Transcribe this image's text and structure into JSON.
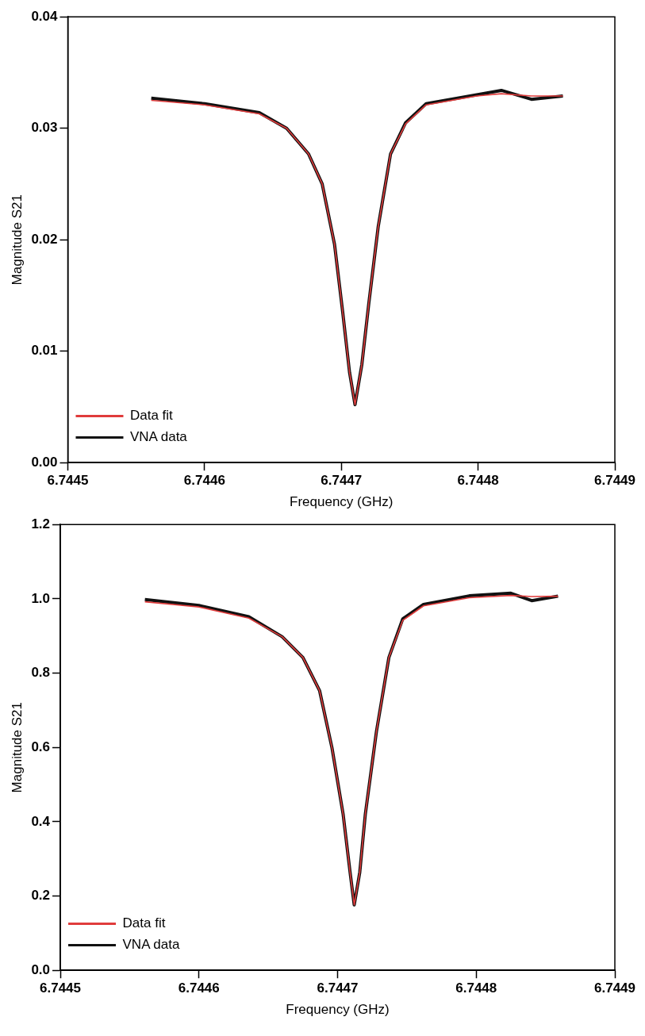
{
  "chart_data": [
    {
      "type": "line",
      "xlabel": "Frequency (GHz)",
      "ylabel": "Magnitude S21",
      "xlim": [
        6.7445,
        6.7449
      ],
      "ylim": [
        0,
        0.04
      ],
      "xticks": [
        6.7445,
        6.7446,
        6.7447,
        6.7448,
        6.7449
      ],
      "yticks": [
        {
          "value": 0,
          "label": "0.00"
        },
        {
          "value": 0.01,
          "label": "0.01"
        },
        {
          "value": 0.02,
          "label": "0.02"
        },
        {
          "value": 0.03,
          "label": "0.03"
        },
        {
          "value": 0.04,
          "label": "0.04"
        }
      ],
      "grid": false,
      "legend": "bottom left",
      "marker": "none",
      "line_style": "solid",
      "series": [
        {
          "name": "VNA data",
          "color": "#111111",
          "x": [
            6.744561,
            6.7446,
            6.74464,
            6.74466,
            6.744676,
            6.744686,
            6.744695,
            6.744701,
            6.744706,
            6.74471,
            6.744715,
            6.74472,
            6.744727,
            6.744736,
            6.744747,
            6.744762,
            6.744799,
            6.744817,
            6.744839,
            6.744862
          ],
          "values": [
            0.0327,
            0.0322,
            0.0314,
            0.03,
            0.0277,
            0.025,
            0.0196,
            0.0135,
            0.0081,
            0.0052,
            0.0088,
            0.0142,
            0.0212,
            0.0277,
            0.0305,
            0.0322,
            0.033,
            0.0334,
            0.0326,
            0.0329
          ]
        },
        {
          "name": "Data fit",
          "color": "#e03c3c",
          "x": [
            6.744561,
            6.7446,
            6.74464,
            6.74466,
            6.744676,
            6.744686,
            6.744695,
            6.744701,
            6.744706,
            6.74471,
            6.744715,
            6.74472,
            6.744727,
            6.744736,
            6.744747,
            6.744762,
            6.744799,
            6.744817,
            6.744839,
            6.744862
          ],
          "values": [
            0.0325,
            0.0321,
            0.0313,
            0.03,
            0.0277,
            0.025,
            0.0196,
            0.0135,
            0.0081,
            0.0052,
            0.0088,
            0.0142,
            0.0212,
            0.0277,
            0.0304,
            0.0321,
            0.0329,
            0.0331,
            0.0329,
            0.0329
          ]
        }
      ]
    },
    {
      "type": "line",
      "xlabel": "Frequency (GHz)",
      "ylabel": "Magnitude S21",
      "xlim": [
        6.7445,
        6.7449
      ],
      "ylim": [
        0,
        1.2
      ],
      "xticks": [
        6.7445,
        6.7446,
        6.7447,
        6.7448,
        6.7449
      ],
      "yticks": [
        {
          "value": 0,
          "label": "0.0"
        },
        0.2,
        0.4,
        0.6,
        0.8,
        {
          "value": 1,
          "label": "1.0"
        },
        1.2
      ],
      "grid": false,
      "legend": "bottom left",
      "marker": "none",
      "line_style": "solid",
      "series": [
        {
          "name": "VNA data",
          "color": "#111111",
          "x": [
            6.744561,
            6.7446,
            6.744636,
            6.74466,
            6.744675,
            6.744687,
            6.744696,
            6.744704,
            6.744709,
            6.744712,
            6.744716,
            6.74472,
            6.744728,
            6.744737,
            6.744747,
            6.744762,
            6.744795,
            6.744825,
            6.74484,
            6.744859
          ],
          "values": [
            0.998,
            0.982,
            0.952,
            0.898,
            0.842,
            0.753,
            0.598,
            0.42,
            0.264,
            0.176,
            0.264,
            0.42,
            0.642,
            0.842,
            0.946,
            0.985,
            1.008,
            1.015,
            0.995,
            1.007
          ]
        },
        {
          "name": "Data fit",
          "color": "#e03c3c",
          "x": [
            6.744561,
            6.7446,
            6.744636,
            6.74466,
            6.744675,
            6.744687,
            6.744696,
            6.744704,
            6.744709,
            6.744712,
            6.744716,
            6.74472,
            6.744728,
            6.744737,
            6.744747,
            6.744762,
            6.744795,
            6.744825,
            6.74484,
            6.744859
          ],
          "values": [
            0.992,
            0.978,
            0.948,
            0.898,
            0.842,
            0.753,
            0.598,
            0.42,
            0.264,
            0.176,
            0.264,
            0.42,
            0.642,
            0.842,
            0.942,
            0.981,
            1.003,
            1.009,
            1.006,
            1.007
          ]
        }
      ]
    }
  ]
}
